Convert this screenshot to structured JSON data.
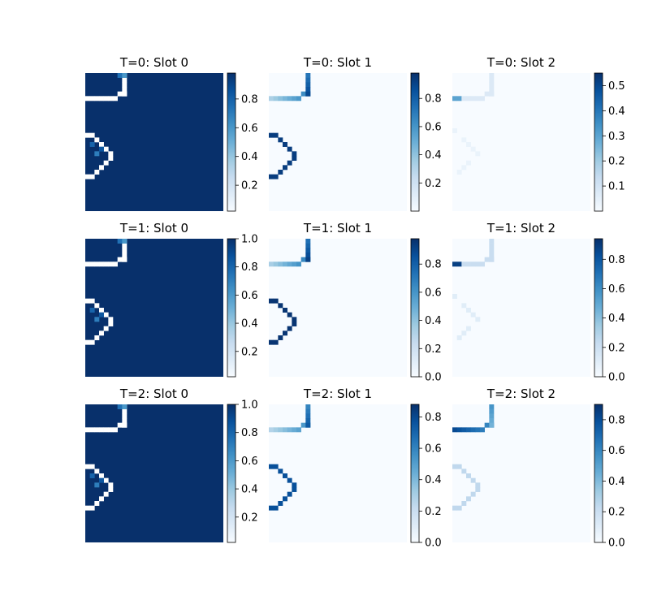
{
  "chart_data": {
    "type": "heatmap",
    "colormap": "Blues",
    "grid": false,
    "colors": {
      "low": "#f7fbff",
      "high": "#08306b",
      "outline": "#ffffff"
    },
    "panels": [
      {
        "title": "T=0: Slot 0",
        "kind": "background",
        "cb_ticks": [
          "0.2",
          "0.4",
          "0.6",
          "0.8"
        ],
        "cb_range": [
          0.02,
          0.98
        ]
      },
      {
        "title": "T=0: Slot 1",
        "kind": "outline",
        "strength": 0.95,
        "cb_ticks": [
          "0.2",
          "0.4",
          "0.6",
          "0.8"
        ],
        "cb_range": [
          0.0,
          0.98
        ]
      },
      {
        "title": "T=0: Slot 2",
        "kind": "faint",
        "strength": 0.55,
        "cb_ticks": [
          "0.1",
          "0.2",
          "0.3",
          "0.4",
          "0.5"
        ],
        "cb_range": [
          0.0,
          0.55
        ]
      },
      {
        "title": "T=1: Slot 0",
        "kind": "background",
        "cb_ticks": [
          "0.2",
          "0.4",
          "0.6",
          "0.8",
          "1.0"
        ],
        "cb_range": [
          0.02,
          1.0
        ]
      },
      {
        "title": "T=1: Slot 1",
        "kind": "outline",
        "strength": 0.98,
        "cb_ticks": [
          "0.0",
          "0.2",
          "0.4",
          "0.6",
          "0.8"
        ],
        "cb_range": [
          0.0,
          0.98
        ]
      },
      {
        "title": "T=1: Slot 2",
        "kind": "faint",
        "strength": 0.94,
        "cb_ticks": [
          "0.0",
          "0.2",
          "0.4",
          "0.6",
          "0.8"
        ],
        "cb_range": [
          0.0,
          0.94
        ]
      },
      {
        "title": "T=2: Slot 0",
        "kind": "background",
        "cb_ticks": [
          "0.2",
          "0.4",
          "0.6",
          "0.8",
          "1.0"
        ],
        "cb_range": [
          0.02,
          1.0
        ]
      },
      {
        "title": "T=2: Slot 1",
        "kind": "outline",
        "strength": 0.88,
        "cb_ticks": [
          "0.0",
          "0.2",
          "0.4",
          "0.6",
          "0.8"
        ],
        "cb_range": [
          0.0,
          0.88
        ]
      },
      {
        "title": "T=2: Slot 2",
        "kind": "outline2",
        "strength": 0.9,
        "cb_ticks": [
          "0.0",
          "0.2",
          "0.4",
          "0.6",
          "0.8"
        ],
        "cb_range": [
          0.0,
          0.9
        ]
      }
    ]
  }
}
